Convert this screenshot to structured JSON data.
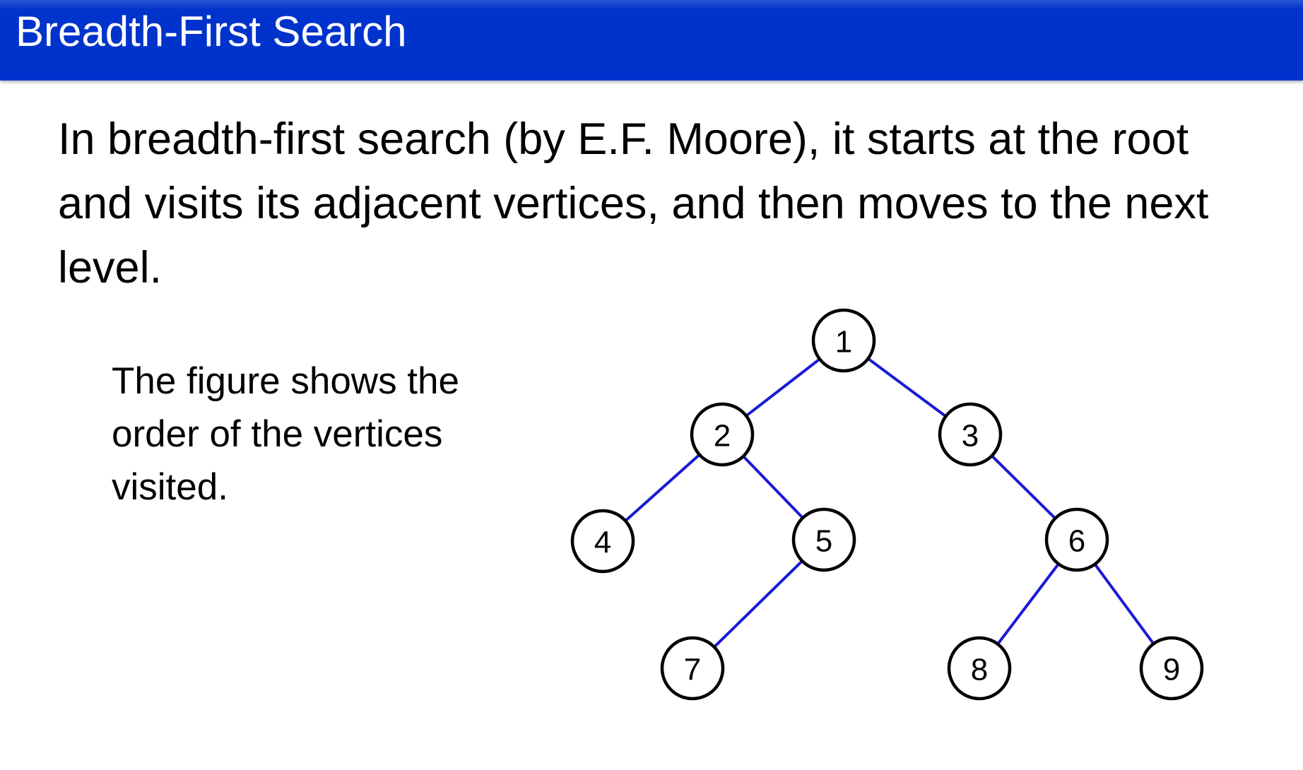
{
  "title": "Breadth-First Search",
  "body_text": "In breadth-first search (by E.F. Moore), it starts at the root and visits its adjacent vertices, and then moves to the next level.",
  "side_note": "The figure shows the order of the vertices visited.",
  "colors": {
    "title_bar": "#0033cc",
    "edge": "#1a1ad6"
  },
  "tree": {
    "nodes": [
      {
        "id": "1",
        "label": "1"
      },
      {
        "id": "2",
        "label": "2"
      },
      {
        "id": "3",
        "label": "3"
      },
      {
        "id": "4",
        "label": "4"
      },
      {
        "id": "5",
        "label": "5"
      },
      {
        "id": "6",
        "label": "6"
      },
      {
        "id": "7",
        "label": "7"
      },
      {
        "id": "8",
        "label": "8"
      },
      {
        "id": "9",
        "label": "9"
      }
    ],
    "edges": [
      [
        "1",
        "2"
      ],
      [
        "1",
        "3"
      ],
      [
        "2",
        "4"
      ],
      [
        "2",
        "5"
      ],
      [
        "3",
        "6"
      ],
      [
        "5",
        "7"
      ],
      [
        "6",
        "8"
      ],
      [
        "6",
        "9"
      ]
    ]
  }
}
